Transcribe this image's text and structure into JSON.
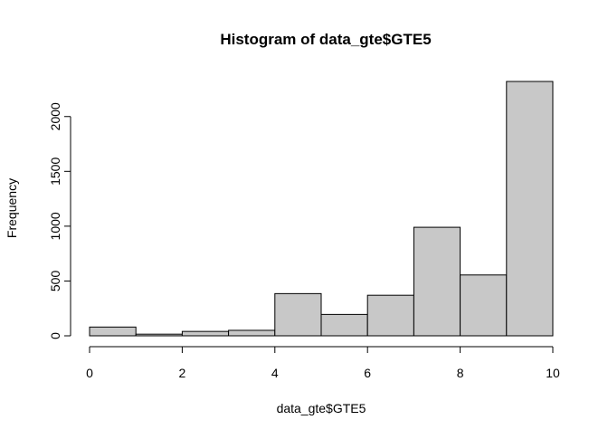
{
  "chart_data": {
    "type": "bar",
    "title": "Histogram of data_gte$GTE5",
    "xlabel": "data_gte$GTE5",
    "ylabel": "Frequency",
    "bins": [
      {
        "from": 0,
        "to": 1,
        "count": 80
      },
      {
        "from": 1,
        "to": 2,
        "count": 15
      },
      {
        "from": 2,
        "to": 3,
        "count": 40
      },
      {
        "from": 3,
        "to": 4,
        "count": 50
      },
      {
        "from": 4,
        "to": 5,
        "count": 385
      },
      {
        "from": 5,
        "to": 6,
        "count": 195
      },
      {
        "from": 6,
        "to": 7,
        "count": 370
      },
      {
        "from": 7,
        "to": 8,
        "count": 990
      },
      {
        "from": 8,
        "to": 9,
        "count": 555
      },
      {
        "from": 9,
        "to": 10,
        "count": 2320
      }
    ],
    "xlim": [
      0,
      10
    ],
    "ylim": [
      0,
      2320
    ],
    "x_ticks": [
      0,
      2,
      4,
      6,
      8,
      10
    ],
    "x_tick_labels": [
      "0",
      "2",
      "4",
      "6",
      "8",
      "10"
    ],
    "y_ticks": [
      0,
      500,
      1000,
      1500,
      2000
    ],
    "y_tick_labels": [
      "0",
      "500",
      "1000",
      "1500",
      "2000"
    ],
    "bar_fill": "#c8c8c8",
    "bar_stroke": "#000000",
    "grid": false,
    "legend": "none"
  }
}
